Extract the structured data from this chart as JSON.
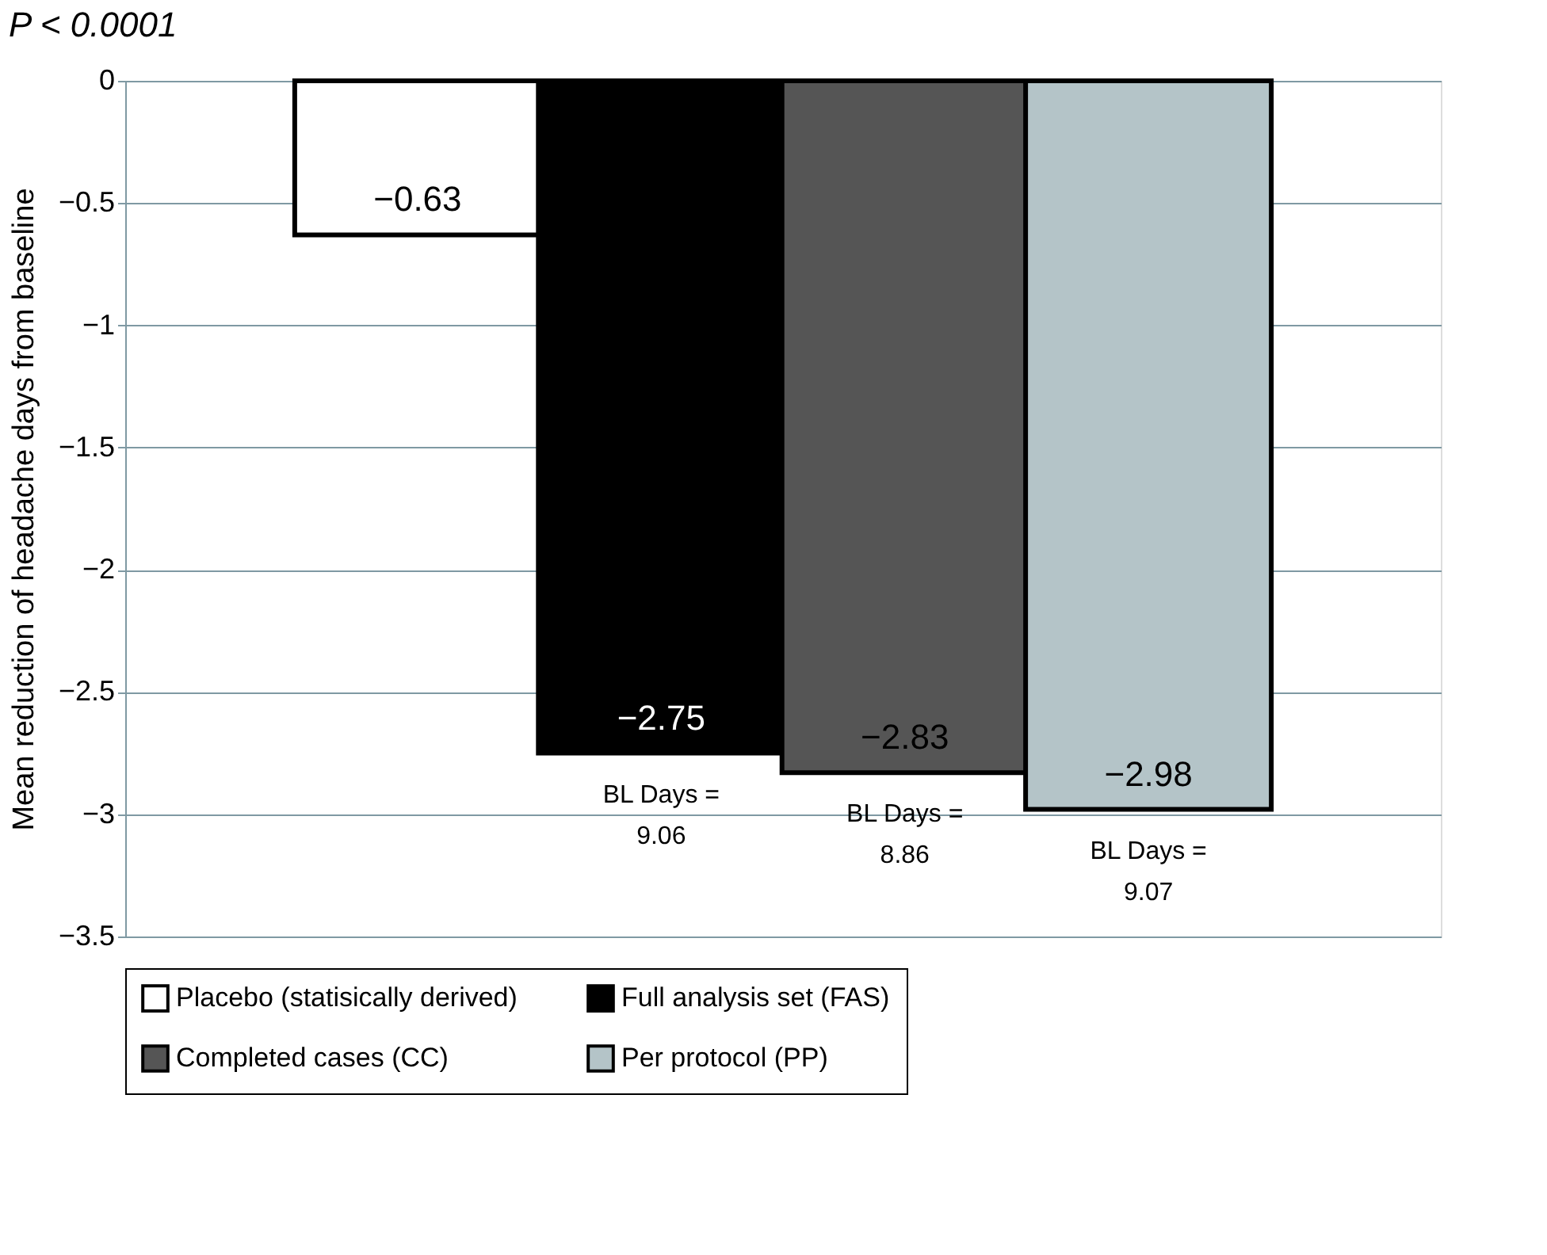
{
  "chart_data": {
    "type": "bar",
    "title": "P < 0.0001",
    "ylabel": "Mean reduction of headache days from baseline",
    "categories": [
      null
    ],
    "series": [
      {
        "name": "Placebo (statisically derived)",
        "color": "#ffffff",
        "values": [
          -0.63
        ]
      },
      {
        "name": "Full analysis set (FAS)",
        "color": "#000000",
        "values": [
          -2.75
        ]
      },
      {
        "name": "Completed cases (CC)",
        "color": "#555555",
        "values": [
          -2.83
        ]
      },
      {
        "name": "Per protocol (PP)",
        "color": "#b4c4c8",
        "values": [
          -2.98
        ]
      }
    ],
    "ylim": [
      -3.5,
      0
    ],
    "yticks": [
      0,
      -0.5,
      -1,
      -1.5,
      -2,
      -2.5,
      -3,
      -3.5
    ],
    "grid": "y",
    "legend": "bottom",
    "data_labels": true,
    "tick_labels": "y",
    "annotations": [
      "BL Days =\n9.06",
      "BL Days =\n8.86",
      "BL Days =\n9.07"
    ]
  }
}
